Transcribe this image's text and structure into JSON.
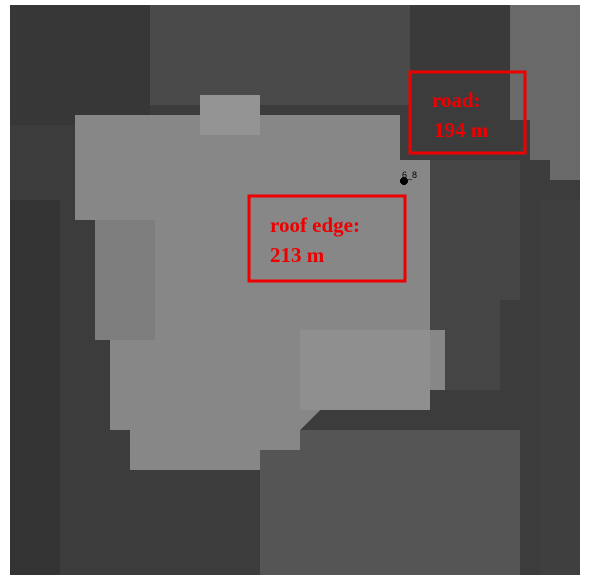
{
  "map": {
    "point": {
      "label": "6_8"
    },
    "annotations": [
      {
        "lines": [
          "road:",
          "194 m"
        ]
      },
      {
        "lines": [
          "roof edge:",
          "213 m"
        ]
      }
    ]
  }
}
